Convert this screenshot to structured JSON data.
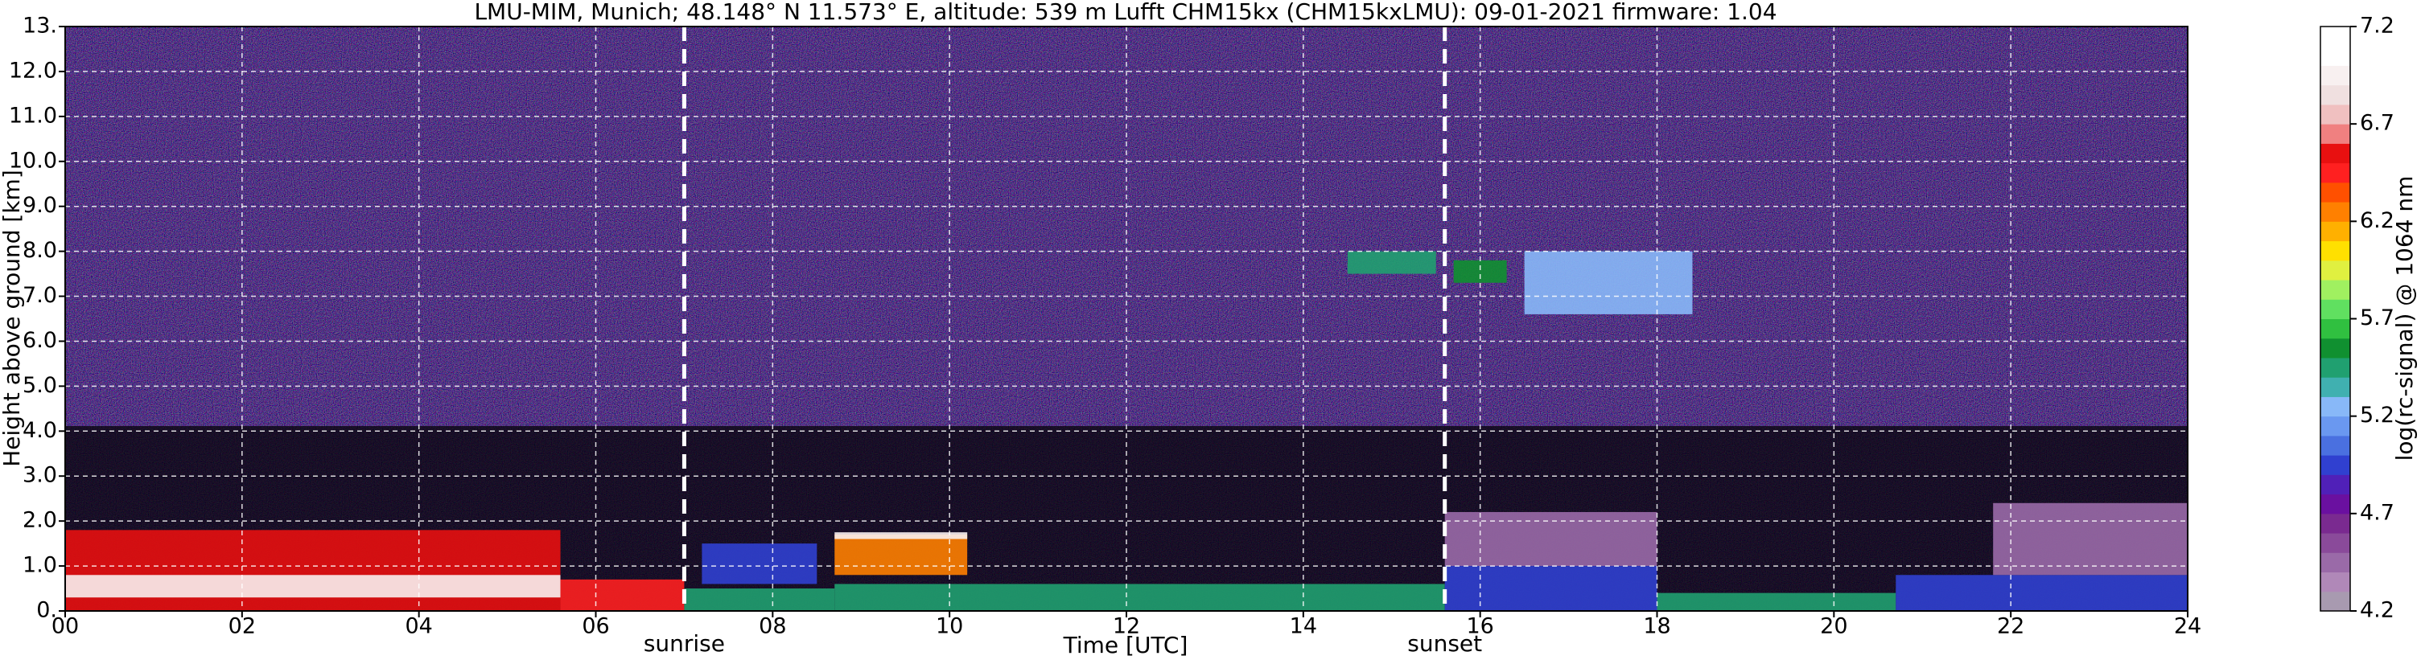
{
  "chart_data": {
    "type": "heatmap",
    "title": "LMU-MIM, Munich; 48.148° N 11.573° E, altitude: 539 m    Lufft CHM15kx (CHM15kxLMU): 09-01-2021    firmware: 1.04",
    "x_label": "Time [UTC]",
    "y_label": "Height above ground [km]",
    "colorbar_label": "log(rc-signal) @ 1064 nm",
    "xlim": [
      0,
      24
    ],
    "xticks": [
      {
        "value": 0,
        "label": "00"
      },
      {
        "value": 2,
        "label": "02"
      },
      {
        "value": 4,
        "label": "04"
      },
      {
        "value": 6,
        "label": "06"
      },
      {
        "value": 8,
        "label": "08"
      },
      10,
      12,
      14,
      16,
      18,
      20,
      22,
      24
    ],
    "ylim": [
      0,
      13
    ],
    "yticks": [
      {
        "value": 0,
        "label": "0."
      },
      {
        "value": 1,
        "label": "1.0"
      },
      {
        "value": 2,
        "label": "2.0"
      },
      {
        "value": 3,
        "label": "3.0"
      },
      {
        "value": 4,
        "label": "4.0"
      },
      {
        "value": 5,
        "label": "5.0"
      },
      {
        "value": 6,
        "label": "6.0"
      },
      {
        "value": 7,
        "label": "7.0"
      },
      {
        "value": 8,
        "label": "8.0"
      },
      {
        "value": 9,
        "label": "9.0"
      },
      {
        "value": 10,
        "label": "10.0"
      },
      {
        "value": 11,
        "label": "11.0"
      },
      {
        "value": 12,
        "label": "12.0"
      },
      {
        "value": 13,
        "label": "13."
      }
    ],
    "grid": true,
    "clim": [
      4.2,
      7.2
    ],
    "cticks": [
      4.2,
      4.7,
      5.2,
      5.7,
      6.2,
      6.7,
      7.2
    ],
    "colormap": [
      "#a89ab0",
      "#b088b8",
      "#9a6aa8",
      "#8a4a9a",
      "#7a2a90",
      "#6a10a0",
      "#5020b8",
      "#3040d0",
      "#4a70e0",
      "#6a98f0",
      "#88b8f8",
      "#40b0b0",
      "#20a070",
      "#109030",
      "#30c040",
      "#60e060",
      "#a0f060",
      "#e0f040",
      "#ffe000",
      "#ffb000",
      "#ff8000",
      "#ff5000",
      "#ff2020",
      "#e81010",
      "#f08080",
      "#f0c0c0",
      "#f0e0e0",
      "#f8f0f0",
      "#ffffff",
      "#ffffff"
    ],
    "annotations": [
      {
        "text": "sunrise",
        "x": 7.0
      },
      {
        "text": "sunset",
        "x": 15.6
      }
    ],
    "regions": [
      {
        "x": [
          0,
          5.6
        ],
        "y": [
          0,
          1.8
        ],
        "value": 6.6
      },
      {
        "x": [
          0,
          5.6
        ],
        "y": [
          0.3,
          0.8
        ],
        "value": 7.0
      },
      {
        "x": [
          5.6,
          7.0
        ],
        "y": [
          0,
          0.7
        ],
        "value": 6.4
      },
      {
        "x": [
          7.0,
          8.7
        ],
        "y": [
          0,
          0.5
        ],
        "value": 5.5
      },
      {
        "x": [
          7.2,
          8.5
        ],
        "y": [
          0.6,
          1.5
        ],
        "value": 5.0
      },
      {
        "x": [
          8.7,
          15.6
        ],
        "y": [
          0,
          0.6
        ],
        "value": 5.4
      },
      {
        "x": [
          8.7,
          10.2
        ],
        "y": [
          0.8,
          1.7
        ],
        "value": 6.2
      },
      {
        "x": [
          8.7,
          10.2
        ],
        "y": [
          1.6,
          1.75
        ],
        "value": 7.0
      },
      {
        "x": [
          15.6,
          18.0
        ],
        "y": [
          1.0,
          2.2
        ],
        "value": 4.4
      },
      {
        "x": [
          15.6,
          18.0
        ],
        "y": [
          0,
          1.0
        ],
        "value": 4.9
      },
      {
        "x": [
          18.0,
          20.7
        ],
        "y": [
          0,
          0.4
        ],
        "value": 5.4
      },
      {
        "x": [
          20.7,
          24
        ],
        "y": [
          0,
          0.8
        ],
        "value": 5.0
      },
      {
        "x": [
          21.8,
          24
        ],
        "y": [
          0.8,
          2.4
        ],
        "value": 4.4
      },
      {
        "x": [
          14.5,
          15.5
        ],
        "y": [
          7.5,
          8.0
        ],
        "value": 5.5
      },
      {
        "x": [
          15.7,
          16.3
        ],
        "y": [
          7.3,
          7.8
        ],
        "value": 5.6
      },
      {
        "x": [
          16.5,
          18.4
        ],
        "y": [
          6.6,
          8.0
        ],
        "value": 5.3
      }
    ]
  }
}
